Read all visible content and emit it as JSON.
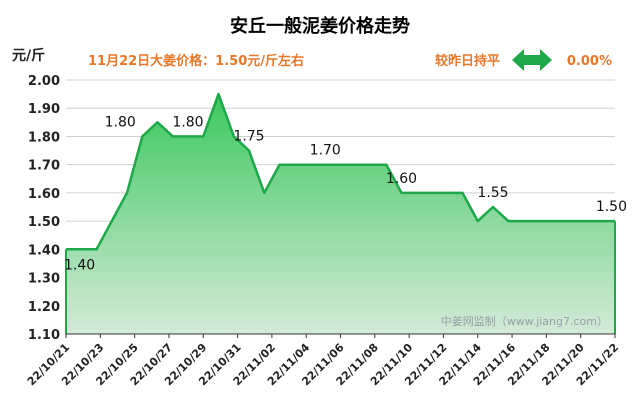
{
  "chart_data": {
    "type": "area",
    "title": "安丘一般泥姜价格走势",
    "subtitle": "11月22日大姜价格：1.50元/斤左右",
    "trend_text": "较昨日持平",
    "trend_icon": "double-arrow-icon",
    "change_text": "0.00%",
    "ylabel": "元/斤",
    "watermark": "中姜网监制（www.jiang7.com）",
    "ylim": [
      1.1,
      2.0
    ],
    "y_ticks": [
      "1.10",
      "1.20",
      "1.30",
      "1.40",
      "1.50",
      "1.60",
      "1.70",
      "1.80",
      "1.90",
      "2.00"
    ],
    "x_labels": [
      "22/10/21",
      "22/10/23",
      "22/10/25",
      "22/10/27",
      "22/10/29",
      "22/10/31",
      "22/11/02",
      "22/11/04",
      "22/11/06",
      "22/11/08",
      "22/11/10",
      "22/11/12",
      "22/11/14",
      "22/11/16",
      "22/11/18",
      "22/11/20",
      "22/11/22"
    ],
    "values": [
      1.4,
      1.4,
      1.4,
      1.5,
      1.6,
      1.8,
      1.85,
      1.8,
      1.8,
      1.8,
      1.95,
      1.8,
      1.75,
      1.6,
      1.7,
      1.7,
      1.7,
      1.7,
      1.7,
      1.7,
      1.7,
      1.7,
      1.6,
      1.6,
      1.6,
      1.6,
      1.6,
      1.5,
      1.55,
      1.5,
      1.5,
      1.5,
      1.5,
      1.5,
      1.5,
      1.5,
      1.5
    ],
    "data_labels": [
      {
        "index": 0,
        "text": "1.40"
      },
      {
        "index": 5,
        "text": "1.80"
      },
      {
        "index": 8,
        "text": "1.80"
      },
      {
        "index": 12,
        "text": "1.75"
      },
      {
        "index": 17,
        "text": "1.70"
      },
      {
        "index": 22,
        "text": "1.60"
      },
      {
        "index": 28,
        "text": "1.55"
      },
      {
        "index": 36,
        "text": "1.50"
      }
    ],
    "grid": "horizontal",
    "legend": "none",
    "colors": {
      "line": "#1ea84a",
      "fill_top": "#3cc85e",
      "fill_bottom": "#d4ead8",
      "title": "#000000",
      "subtitle": "#e8782a",
      "arrow": "#1ea84a",
      "grid": "#d0d0d0",
      "axis": "#333333",
      "watermark": "#9aa0a6"
    }
  }
}
